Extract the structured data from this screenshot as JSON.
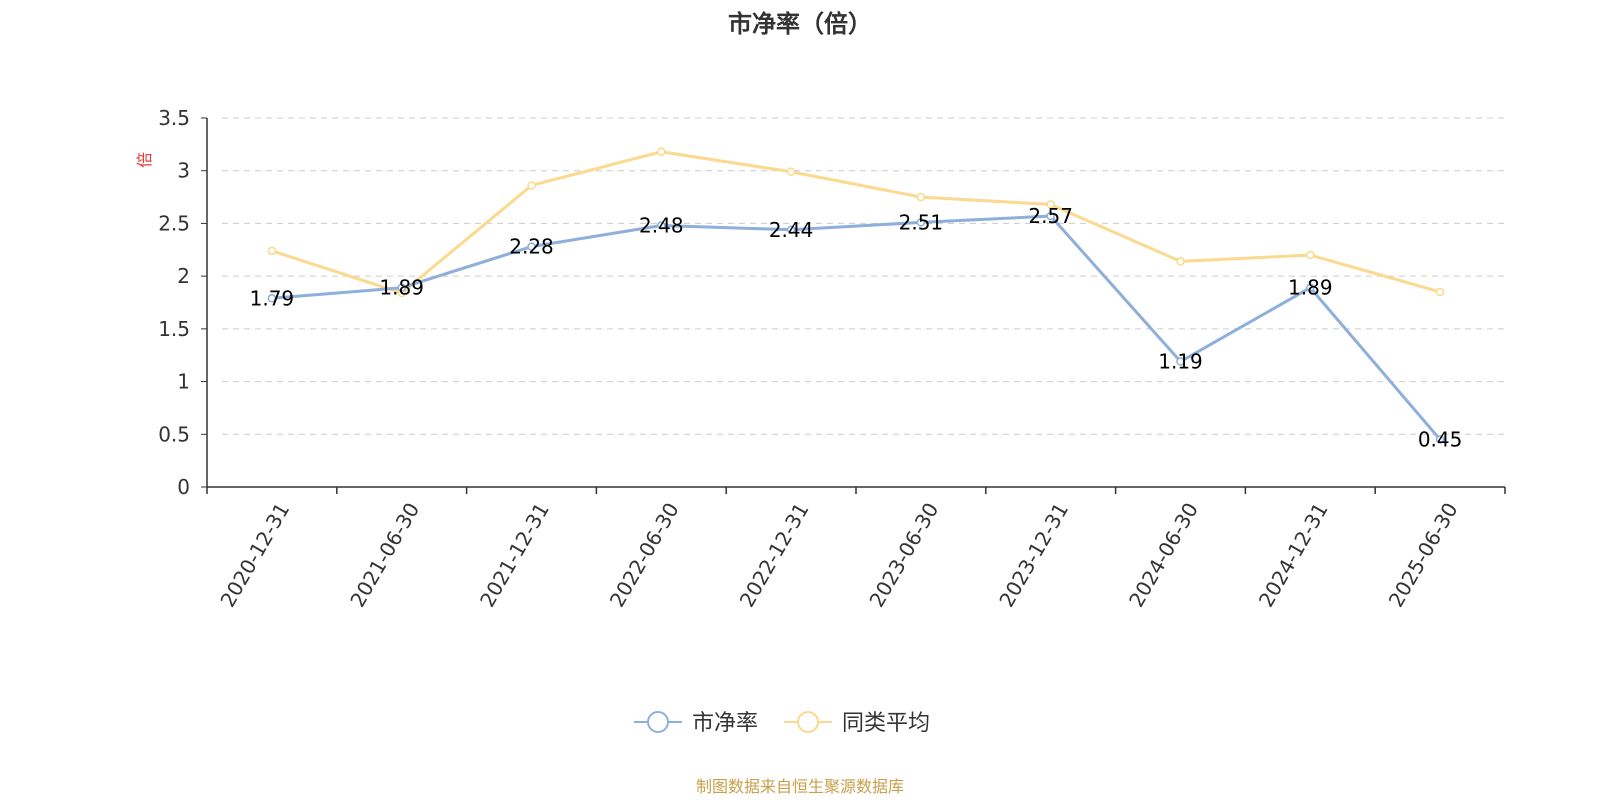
{
  "chart_data": {
    "type": "line",
    "title": "市净率（倍）",
    "ylabel": "倍",
    "xlabel": "",
    "categories": [
      "2020-12-31",
      "2021-06-30",
      "2021-12-31",
      "2022-06-30",
      "2022-12-31",
      "2023-06-30",
      "2023-12-31",
      "2024-06-30",
      "2024-12-31",
      "2025-06-30"
    ],
    "ylim": [
      0,
      3.5
    ],
    "yticks": [
      "0",
      "0.5",
      "1",
      "1.5",
      "2",
      "2.5",
      "3",
      "3.5"
    ],
    "grid": true,
    "legend_position": "bottom-center",
    "series": [
      {
        "name": "市净率",
        "color": "#8EAEDB",
        "values": [
          1.79,
          1.89,
          2.28,
          2.48,
          2.44,
          2.51,
          2.57,
          1.19,
          1.89,
          0.45
        ],
        "labels": [
          "1.79",
          "1.89",
          "2.28",
          "2.48",
          "2.44",
          "2.51",
          "2.57",
          "1.19",
          "1.89",
          "0.45"
        ]
      },
      {
        "name": "同类平均",
        "color": "#FBD98E",
        "values": [
          2.24,
          1.84,
          2.86,
          3.18,
          2.99,
          2.75,
          2.68,
          2.14,
          2.2,
          1.85
        ]
      }
    ]
  },
  "footer": {
    "source": "制图数据来自恒生聚源数据库",
    "color": "#C8A04A"
  },
  "colors": {
    "unit_label": "#E53935",
    "axis": "#333333",
    "grid": "#CCCCCC"
  }
}
